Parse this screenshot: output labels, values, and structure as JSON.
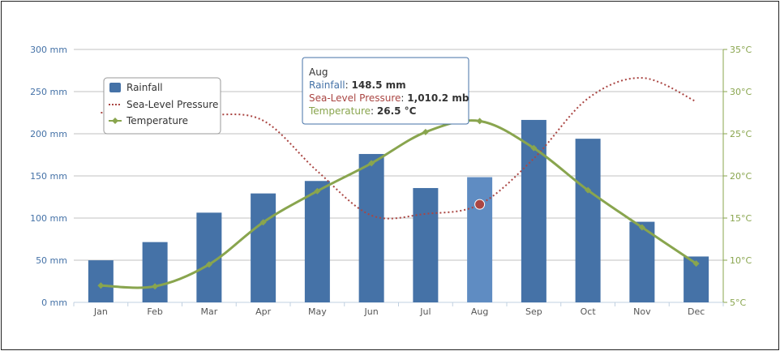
{
  "chart_data": {
    "type": "bar",
    "categories": [
      "Jan",
      "Feb",
      "Mar",
      "Apr",
      "May",
      "Jun",
      "Jul",
      "Aug",
      "Sep",
      "Oct",
      "Nov",
      "Dec"
    ],
    "series": [
      {
        "name": "Rainfall",
        "type": "bar",
        "axis": "left",
        "color": "#4572a7",
        "highlight_color": "#5f8cc2",
        "values": [
          49.9,
          71.5,
          106.4,
          129.2,
          144.0,
          176.0,
          135.6,
          148.5,
          216.4,
          194.1,
          95.6,
          54.4
        ]
      },
      {
        "name": "Sea-Level Pressure",
        "type": "line",
        "style": "dotted",
        "axis": "hidden",
        "color": "#aa4643",
        "values": [
          1016,
          1016,
          1015.9,
          1015.5,
          1012.3,
          1009.5,
          1009.6,
          1010.2,
          1013.1,
          1016.9,
          1018.2,
          1016.7
        ]
      },
      {
        "name": "Temperature",
        "type": "line",
        "axis": "right",
        "color": "#89a54e",
        "values": [
          7.0,
          6.9,
          9.5,
          14.5,
          18.2,
          21.5,
          25.2,
          26.5,
          23.3,
          18.3,
          13.9,
          9.6
        ]
      }
    ],
    "y_left": {
      "ticks": [
        "0 mm",
        "50 mm",
        "100 mm",
        "150 mm",
        "200 mm",
        "250 mm",
        "300 mm"
      ],
      "min": 0,
      "max": 300,
      "color": "#4572a7"
    },
    "y_right": {
      "ticks": [
        "5°C",
        "10°C",
        "15°C",
        "20°C",
        "25°C",
        "30°C",
        "35°C"
      ],
      "min": 5,
      "max": 35,
      "color": "#89a54e"
    },
    "y_hidden": {
      "min": 1004,
      "max": 1020
    },
    "grid": true,
    "legend_position": "top-left",
    "highlight_index": 7
  },
  "tooltip": {
    "category": "Aug",
    "rows": [
      {
        "label": "Rainfall",
        "value": "148.5 mm",
        "color": "#4572a7"
      },
      {
        "label": "Sea-Level Pressure",
        "value": "1,010.2 mb",
        "color": "#aa4643"
      },
      {
        "label": "Temperature",
        "value": "26.5 °C",
        "color": "#89a54e"
      }
    ]
  }
}
